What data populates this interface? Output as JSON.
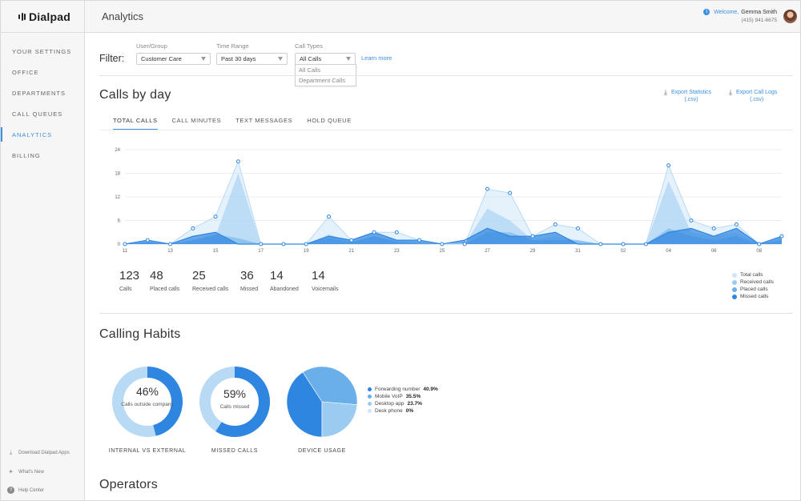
{
  "app": {
    "logo": "Dialpad",
    "page_title": "Analytics"
  },
  "user": {
    "badge": "1",
    "welcome": "Welcome,",
    "name": "Gemma Smith",
    "phone": "(415) 941-6675"
  },
  "sidebar": {
    "items": [
      {
        "label": "YOUR SETTINGS"
      },
      {
        "label": "OFFICE"
      },
      {
        "label": "DEPARTMENTS"
      },
      {
        "label": "CALL QUEUES"
      },
      {
        "label": "ANALYTICS",
        "active": true
      },
      {
        "label": "BILLING"
      }
    ],
    "footer": [
      {
        "label": "Download Dialpad Apps",
        "icon": "download-icon"
      },
      {
        "label": "What's New",
        "icon": "sparkle-icon"
      },
      {
        "label": "Help Center",
        "icon": "help-icon"
      }
    ]
  },
  "filter": {
    "label": "Filter:",
    "user_group": {
      "label": "User/Group",
      "value": "Customer Care"
    },
    "time_range": {
      "label": "Time Range",
      "value": "Past 30 days"
    },
    "call_types": {
      "label": "Call Types",
      "value": "All Calls",
      "options": [
        "All Calls",
        "Department Calls"
      ]
    },
    "learn_more": "Learn more"
  },
  "calls_by_day": {
    "title": "Calls by day",
    "export_statistics": {
      "line1": "Export Statistics",
      "line2": "(.csv)"
    },
    "export_logs": {
      "line1": "Export Call Logs",
      "line2": "(.csv)"
    },
    "tabs": [
      "TOTAL CALLS",
      "CALL MINUTES",
      "TEXT MESSAGES",
      "HOLD QUEUE"
    ],
    "stats": [
      {
        "value": "123",
        "label": "Calls"
      },
      {
        "value": "48",
        "label": "Placed calls"
      },
      {
        "value": "25",
        "label": "Received calls"
      },
      {
        "value": "36",
        "label": "Missed"
      },
      {
        "value": "14",
        "label": "Abandoned"
      },
      {
        "value": "14",
        "label": "Voicemails"
      }
    ],
    "legend": [
      {
        "label": "Total calls",
        "color": "#cfe6f8"
      },
      {
        "label": "Received calls",
        "color": "#9ccbf2"
      },
      {
        "label": "Placed calls",
        "color": "#6aaeea"
      },
      {
        "label": "Missed calls",
        "color": "#2f86e0"
      }
    ]
  },
  "chart_data": {
    "type": "area",
    "x": [
      "11",
      "12",
      "13",
      "14",
      "15",
      "16",
      "17",
      "18",
      "19",
      "20",
      "21",
      "22",
      "23",
      "24",
      "25",
      "26",
      "27",
      "28",
      "29",
      "30",
      "31",
      "01",
      "02",
      "03",
      "04",
      "05",
      "06",
      "07",
      "08",
      "09"
    ],
    "x_tick_labels": [
      "11",
      "13",
      "15",
      "17",
      "19",
      "21",
      "23",
      "25",
      "27",
      "29",
      "31",
      "02",
      "04",
      "06",
      "08"
    ],
    "y_ticks": [
      "0",
      "6",
      "12",
      "18",
      "24"
    ],
    "ylim": [
      0,
      24
    ],
    "series": [
      {
        "name": "Total calls",
        "color": "#cfe6f8",
        "values": [
          0,
          1,
          0,
          4,
          7,
          21,
          0,
          0,
          0,
          7,
          1,
          3,
          3,
          1,
          0,
          0,
          14,
          13,
          2,
          5,
          4,
          0,
          0,
          0,
          20,
          6,
          4,
          5,
          0,
          2
        ]
      },
      {
        "name": "Received calls",
        "color": "#9ccbf2",
        "values": [
          0,
          0.5,
          0,
          1,
          2,
          18,
          0,
          0,
          0,
          2.5,
          0.5,
          2,
          1,
          0.5,
          0,
          0,
          9,
          6,
          1,
          2,
          1,
          0,
          0,
          0,
          16,
          3,
          2,
          3,
          0,
          1.5
        ]
      },
      {
        "name": "Placed calls",
        "color": "#6aaeea",
        "values": [
          0,
          0.5,
          0,
          1,
          2.5,
          1.5,
          0,
          0,
          0,
          1.5,
          0.5,
          2,
          0.5,
          0,
          0,
          0,
          3,
          3,
          1,
          1,
          1,
          0,
          0,
          0,
          4,
          2,
          1,
          2,
          0,
          1
        ]
      },
      {
        "name": "Missed calls",
        "color": "#2f86e0",
        "values": [
          0,
          1,
          0,
          2,
          3,
          0,
          0,
          0,
          0,
          2,
          1,
          3,
          1,
          1,
          0,
          1,
          4,
          2,
          2,
          3,
          0,
          0,
          0,
          0,
          3,
          4,
          2,
          4,
          0,
          2
        ]
      }
    ]
  },
  "calling_habits": {
    "title": "Calling Habits",
    "donuts": [
      {
        "percent": "46%",
        "subtitle": "Calls outside company",
        "title": "INTERNAL VS EXTERNAL",
        "value": 46
      },
      {
        "percent": "59%",
        "subtitle": "Calls missed",
        "title": "MISSED CALLS",
        "value": 59
      }
    ],
    "device_usage": {
      "title": "DEVICE USAGE",
      "slices": [
        {
          "label": "Forwarding number",
          "value": "40.9%",
          "num": 40.9,
          "color": "#2f86e0"
        },
        {
          "label": "Mobile VoIP",
          "value": "35.5%",
          "num": 35.5,
          "color": "#6aaeea"
        },
        {
          "label": "Desktop app",
          "value": "23.7%",
          "num": 23.7,
          "color": "#9ccbf2"
        },
        {
          "label": "Desk phone",
          "value": "0%",
          "num": 0,
          "color": "#cfe6f8"
        }
      ]
    }
  },
  "operators": {
    "title": "Operators"
  }
}
